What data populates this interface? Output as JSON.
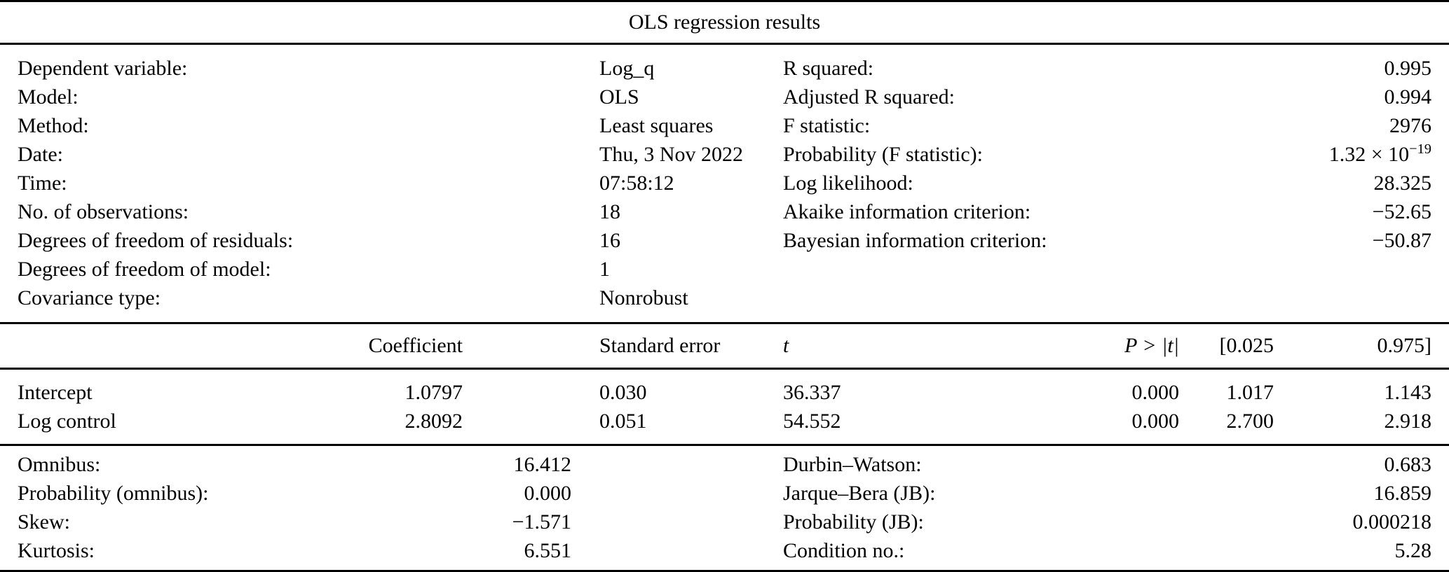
{
  "title": "OLS regression results",
  "model_info": {
    "left": [
      {
        "label": "Dependent variable:",
        "value": "Log_q"
      },
      {
        "label": "Model:",
        "value": "OLS"
      },
      {
        "label": "Method:",
        "value": "Least squares"
      },
      {
        "label": "Date:",
        "value": "Thu, 3 Nov 2022"
      },
      {
        "label": "Time:",
        "value": "07:58:12"
      },
      {
        "label": "No. of observations:",
        "value": "18"
      },
      {
        "label": "Degrees of freedom of residuals:",
        "value": "16"
      },
      {
        "label": "Degrees of freedom of model:",
        "value": "1"
      },
      {
        "label": "Covariance type:",
        "value": "Nonrobust"
      }
    ],
    "right": [
      {
        "label": "R squared:",
        "value": "0.995"
      },
      {
        "label": "Adjusted R squared:",
        "value": "0.994"
      },
      {
        "label": "F statistic:",
        "value": "2976"
      },
      {
        "label": "Probability (F statistic):",
        "value_base": "1.32 × 10",
        "value_exponent": "−19"
      },
      {
        "label": "Log likelihood:",
        "value": "28.325"
      },
      {
        "label": "Akaike information criterion:",
        "value": "−52.65"
      },
      {
        "label": "Bayesian information criterion:",
        "value": "−50.87"
      }
    ]
  },
  "coefficients": {
    "headers": {
      "coefficient": "Coefficient",
      "std_error": "Standard error",
      "t": "t",
      "p": "P > |t|",
      "ci_lower": "[0.025",
      "ci_upper": "0.975]"
    },
    "rows": [
      {
        "name": "Intercept",
        "coefficient": "1.0797",
        "std_error": "0.030",
        "t": "36.337",
        "p": "0.000",
        "ci_lower": "1.017",
        "ci_upper": "1.143"
      },
      {
        "name": "Log control",
        "coefficient": "2.8092",
        "std_error": "0.051",
        "t": "54.552",
        "p": "0.000",
        "ci_lower": "2.700",
        "ci_upper": "2.918"
      }
    ]
  },
  "diagnostics": {
    "left": [
      {
        "label": "Omnibus:",
        "value": "16.412"
      },
      {
        "label": "Probability (omnibus):",
        "value": "0.000"
      },
      {
        "label": "Skew:",
        "value": "−1.571"
      },
      {
        "label": "Kurtosis:",
        "value": "6.551"
      }
    ],
    "right": [
      {
        "label": "Durbin–Watson:",
        "value": "0.683"
      },
      {
        "label": "Jarque–Bera (JB):",
        "value": "16.859"
      },
      {
        "label": "Probability (JB):",
        "value": "0.000218"
      },
      {
        "label": "Condition no.:",
        "value": "5.28"
      }
    ]
  },
  "colors": {
    "text": "#000000",
    "background": "#ffffff",
    "rule": "#000000"
  }
}
